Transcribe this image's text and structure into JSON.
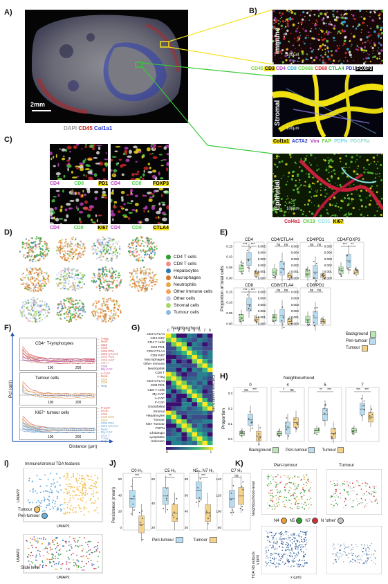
{
  "panels": {
    "A": "A)",
    "B": "B)",
    "C": "C)",
    "D": "D)",
    "E": "E)",
    "F": "F)",
    "G": "G)",
    "H": "H)",
    "I": "I)",
    "J": "J)",
    "K": "K)"
  },
  "panelA": {
    "scale": "2mm",
    "legend": [
      {
        "text": "DAPI",
        "color": "#9a9a9a"
      },
      {
        "text": "CD45",
        "color": "#d02020"
      },
      {
        "text": "Col1a1",
        "color": "#1b2fd0"
      }
    ]
  },
  "panelB": {
    "immune_label": "Immune",
    "stromal_label": "Stromal",
    "epithelial_label": "Epithelial",
    "scale": "100µm",
    "immune_markers": [
      {
        "text": "CD45",
        "color": "#7ccf3a",
        "bg": ""
      },
      {
        "text": "CD3",
        "color": "#000000",
        "bg": "#f4e21a"
      },
      {
        "text": "CD4",
        "color": "#b043b4",
        "bg": ""
      },
      {
        "text": "CD8",
        "color": "#34b4d8",
        "bg": ""
      },
      {
        "text": "CD66b",
        "color": "#6ed04a",
        "bg": ""
      },
      {
        "text": "CD68",
        "color": "#e02a2a",
        "bg": ""
      },
      {
        "text": "CTLA4",
        "color": "#3aa44a",
        "bg": ""
      },
      {
        "text": "PD1",
        "color": "#2a3ab8",
        "bg": ""
      },
      {
        "text": "FOXP3",
        "color": "#ffffff",
        "bg": "#000000"
      }
    ],
    "stromal_markers": [
      {
        "text": "Col1a1",
        "color": "#000000",
        "bg": "#f4e21a"
      },
      {
        "text": "ACTA2",
        "color": "#2a3ab8",
        "bg": ""
      },
      {
        "text": "Vim",
        "color": "#b043b4",
        "bg": ""
      },
      {
        "text": "FAP",
        "color": "#6ed04a",
        "bg": ""
      },
      {
        "text": "PDPN",
        "color": "#7fd7e6",
        "bg": ""
      },
      {
        "text": "PDGFRa",
        "color": "#9fd9d0",
        "bg": ""
      }
    ],
    "epithelial_markers": [
      {
        "text": "Col4a1",
        "color": "#d0203a",
        "bg": ""
      },
      {
        "text": "CK19",
        "color": "#5fcc3a",
        "bg": ""
      },
      {
        "text": "CD31",
        "color": "#8fe2ea",
        "bg": ""
      },
      {
        "text": "Ki67",
        "color": "#000000",
        "bg": "#f4e21a"
      }
    ]
  },
  "panelC": {
    "tiles": [
      {
        "a": "CD4",
        "b": "CD8",
        "c": "PD1"
      },
      {
        "a": "CD4",
        "b": "CD8",
        "c": "FOXP3"
      },
      {
        "a": "CD4",
        "b": "CD8",
        "c": "Ki67"
      },
      {
        "a": "CD4",
        "b": "CD8",
        "c": "CTLA4"
      }
    ]
  },
  "panelD": {
    "legend": [
      {
        "label": "CD4 T cells",
        "color": "#2ca02c"
      },
      {
        "label": "CD8 T cells",
        "color": "#f28e8e"
      },
      {
        "label": "Hepatocytes",
        "color": "#2a7ab8"
      },
      {
        "label": "Macrophages",
        "color": "#d2782a"
      },
      {
        "label": "Neutrophils",
        "color": "#e8a84a"
      },
      {
        "label": "Other Immune cells",
        "color": "#f4a259"
      },
      {
        "label": "Other cells",
        "color": "#c8c8e8"
      },
      {
        "label": "Stromal cells",
        "color": "#a8d86a"
      },
      {
        "label": "Tumour cells",
        "color": "#8fb8e0"
      }
    ]
  },
  "panelE": {
    "ylabel": "Proportion of total cells",
    "legend": [
      {
        "label": "Background",
        "color": "#b8e8b0"
      },
      {
        "label": "Peri-tumour",
        "color": "#b8dcf0"
      },
      {
        "label": "Tumour",
        "color": "#f4d28a"
      }
    ],
    "plots": [
      {
        "title": "CD4",
        "ticks": [
          "0.15",
          "0.10",
          "0.05",
          "0.00"
        ],
        "sig": [
          "***",
          "***"
        ]
      },
      {
        "title": "CD4/CTLA4",
        "ticks": [
          "0.005",
          "0.004",
          "0.003",
          "0.002",
          "0.001",
          "0.000"
        ],
        "sig": [
          "ns",
          "ns"
        ]
      },
      {
        "title": "CD4/PD1",
        "ticks": [
          "0.005",
          "0.004",
          "0.003",
          "0.002",
          "0.001",
          "0.000"
        ],
        "sig": [
          "ns",
          "ns"
        ]
      },
      {
        "title": "CD4/FOXP3",
        "ticks": [
          "0.005",
          "0.004",
          "0.003",
          "0.002",
          "0.001",
          "0.000"
        ],
        "sig": [
          "***",
          "**"
        ]
      },
      {
        "title": "CD8",
        "ticks": [
          "0.15",
          "0.10",
          "0.05",
          "0.00"
        ],
        "sig": [
          "***",
          "***"
        ]
      },
      {
        "title": "CD8/CTLA4",
        "ticks": [
          "0.005",
          "0.004",
          "0.003",
          "0.002",
          "0.001",
          "0.000"
        ],
        "sig": [
          "ns",
          "ns"
        ]
      },
      {
        "title": "CD8/PD1",
        "ticks": [
          "0.005",
          "0.004",
          "0.003",
          "0.002",
          "0.001",
          "0.000"
        ],
        "sig": [
          "ns",
          "ns"
        ]
      }
    ]
  },
  "panelF": {
    "xlabel": "Distance (µm)",
    "ylabel": "Pcf (g(r))",
    "subplots": [
      {
        "title": "CD4⁺ T-lymphocytes",
        "xticks": [
          "100",
          "200"
        ],
        "yticks": [
          "0",
          "1",
          "2",
          "3"
        ],
        "labels": [
          {
            "t": "T-reg",
            "c": "#e03030"
          },
          {
            "t": "Neut.",
            "c": "#e06030"
          },
          {
            "t": "CD4",
            "c": "#c04040"
          },
          {
            "t": "CD8",
            "c": "#e05050"
          },
          {
            "t": "CD8 PD1",
            "c": "#d05050"
          },
          {
            "t": "CD8 CTLA4",
            "c": "#d06060"
          },
          {
            "t": "CD4 PD1",
            "c": "#d07070"
          },
          {
            "t": "CD8 Ki67",
            "c": "#d08080"
          },
          {
            "t": "Ki67+",
            "c": "#d09090"
          },
          {
            "t": "CD8",
            "c": "#a060a0"
          },
          {
            "t": "My-CAF",
            "c": "#c040c0"
          }
        ]
      },
      {
        "title": "Tumour cells",
        "xticks": [
          "100",
          "200"
        ],
        "yticks": [
          "0",
          "1",
          "2"
        ],
        "labels": [
          {
            "t": "A-CAF",
            "c": "#e05050"
          },
          {
            "t": "Neut.",
            "c": "#e06030"
          },
          {
            "t": "CD4",
            "c": "#d08a30"
          },
          {
            "t": "CD8",
            "c": "#d0a030"
          },
          {
            "t": "Hep.",
            "c": "#5a8ad0"
          }
        ]
      },
      {
        "title": "Ki67⁺ tumour cells",
        "xticks": [
          "100",
          "200"
        ],
        "yticks": [
          "0",
          "1",
          "2"
        ],
        "labels": [
          {
            "t": "F-CAF",
            "c": "#e04040"
          },
          {
            "t": "Endo.",
            "c": "#e07040"
          },
          {
            "t": "CD8",
            "c": "#d07060"
          },
          {
            "t": "CD8 Ki67",
            "c": "#d0a060"
          },
          {
            "t": "CD4",
            "c": "#c0a030"
          },
          {
            "t": "CD8 PD1",
            "c": "#60a0d0"
          },
          {
            "t": "CD4 CTLA4",
            "c": "#60a0d0"
          },
          {
            "t": "Neut.",
            "c": "#60a0d0"
          },
          {
            "t": "My-CAF",
            "c": "#60a0d0"
          },
          {
            "t": "CD4 T",
            "c": "#7aa0d0"
          },
          {
            "t": "T-reg",
            "c": "#7aa0d0"
          },
          {
            "t": "Hep.",
            "c": "#5a8ad0"
          }
        ]
      }
    ]
  },
  "panelG": {
    "title": "Neighbourhood",
    "right_label": "Cell type count/cluster",
    "cols": [
      "0",
      "1",
      "2",
      "3",
      "4",
      "5",
      "6",
      "7",
      "8"
    ],
    "rows": [
      "CD4 CTLA4",
      "CD4 Ki67",
      "CD4 T cells",
      "CD4 PD1",
      "CD8 CTLA4",
      "CD8 Ki67",
      "Macrophages",
      "Other Immune",
      "Neutrophils",
      "CD8 T",
      "T-reg",
      "CD4 CTLA4",
      "CD8 PD1",
      "CD8 T cells",
      "My-CAF",
      "A-CAF",
      "F-CAF",
      "Endothelial",
      "Stromal",
      "Hepatocytes",
      "Tumour",
      "Ki67 Tumour",
      "PDPN",
      "Cholangio",
      "Lymphatic",
      "Unknown"
    ],
    "colorbar": [
      "0",
      "1"
    ]
  },
  "panelH": {
    "title": "Neighbourhood",
    "ylabel": "Proportion",
    "plots": [
      {
        "title": "0",
        "sig": [
          "ns",
          "***"
        ]
      },
      {
        "title": "4",
        "sig": [
          "*",
          "ns"
        ]
      },
      {
        "title": "5",
        "sig": [
          "**",
          "***"
        ]
      },
      {
        "title": "7",
        "sig": [
          "***",
          "***"
        ]
      }
    ],
    "yticks": [
      "0.3",
      "0.2",
      "0.1",
      "0.0"
    ],
    "legend": [
      {
        "label": "Background",
        "color": "#b8e8b0"
      },
      {
        "label": "Peri-tumour",
        "color": "#b8dcf0"
      },
      {
        "label": "Tumour",
        "color": "#f4d28a"
      }
    ]
  },
  "panelI": {
    "top_title": "Immune/stromal TDA features",
    "xlabel": "UMAP1",
    "ylabel": "UMAP2",
    "legend": [
      {
        "label": "Tumour",
        "color": "#f4c35a"
      },
      {
        "label": "Peri-tumour",
        "color": "#6aaee0"
      }
    ],
    "bottom_label": "Slide level"
  },
  "panelJ": {
    "ylabel": "Persistence (mean)",
    "plots": [
      {
        "title": "C0 H₀",
        "sig": "***",
        "yticks": [
          "60",
          "40",
          "20",
          "0"
        ]
      },
      {
        "title": "C5 H₀",
        "sig": "**",
        "yticks": [
          "60",
          "40",
          "20"
        ]
      },
      {
        "title": "N5↔N7 H₀",
        "sig": "***",
        "yticks": [
          "80",
          "60",
          "40",
          "20"
        ]
      },
      {
        "title": "C7 H₀",
        "sig": "ns",
        "yticks": [
          "140",
          "120",
          "100",
          "80"
        ]
      }
    ],
    "legend": [
      {
        "label": "Peri-tumour",
        "color": "#b8dcf0"
      },
      {
        "label": "Tumour",
        "color": "#f4d28a"
      }
    ]
  },
  "panelK": {
    "col1": "Peri-tumour",
    "col2": "Tumour",
    "row1": "Neighbourhood-level",
    "row2": "TDA N5 outputs",
    "xlabel": "x (µm)",
    "ylabel": "y (µm)",
    "legend": [
      {
        "label": "N4",
        "color": "#f0a030"
      },
      {
        "label": "N5",
        "color": "#2ca02c"
      },
      {
        "label": "N7",
        "color": "#d03030"
      },
      {
        "label": "N 'other'",
        "color": "#c8c8c8"
      }
    ]
  }
}
